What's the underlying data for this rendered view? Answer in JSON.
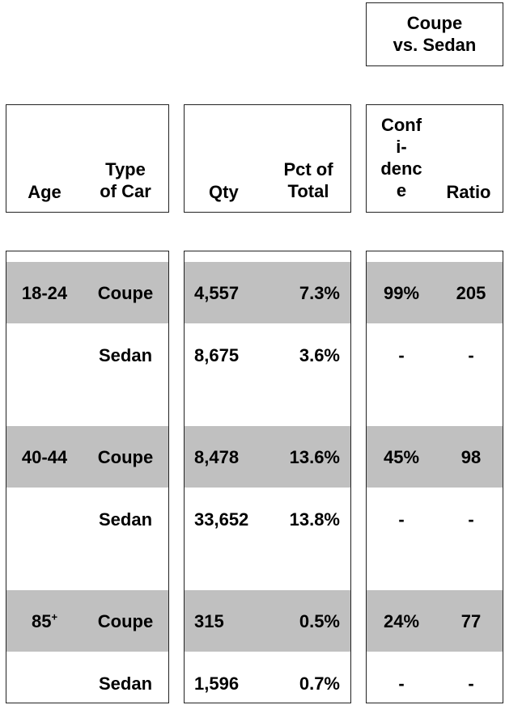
{
  "chart_data": {
    "type": "table",
    "group_header": "Coupe vs. Sedan",
    "columns": {
      "age": "Age",
      "type": "Type of Car",
      "qty": "Qty",
      "pct": "Pct of Total",
      "confidence": "Confidence",
      "ratio": "Ratio"
    },
    "rows": [
      {
        "age": "18-24",
        "type": "Coupe",
        "qty": "4,557",
        "pct": "7.3%",
        "confidence": "99%",
        "ratio": "205",
        "shaded": true
      },
      {
        "age": "",
        "type": "Sedan",
        "qty": "8,675",
        "pct": "3.6%",
        "confidence": "-",
        "ratio": "-",
        "shaded": false
      },
      {
        "age": "40-44",
        "type": "Coupe",
        "qty": "8,478",
        "pct": "13.6%",
        "confidence": "45%",
        "ratio": "98",
        "shaded": true
      },
      {
        "age": "",
        "type": "Sedan",
        "qty": "33,652",
        "pct": "13.8%",
        "confidence": "-",
        "ratio": "-",
        "shaded": false
      },
      {
        "age": "85+",
        "type": "Coupe",
        "qty": "315",
        "pct": "0.5%",
        "confidence": "24%",
        "ratio": "77",
        "shaded": true
      },
      {
        "age": "",
        "type": "Sedan",
        "qty": "1,596",
        "pct": "0.7%",
        "confidence": "-",
        "ratio": "-",
        "shaded": false
      }
    ]
  },
  "colors": {
    "band": "#c0c0c0",
    "text": "#000000",
    "border": "#222222"
  }
}
